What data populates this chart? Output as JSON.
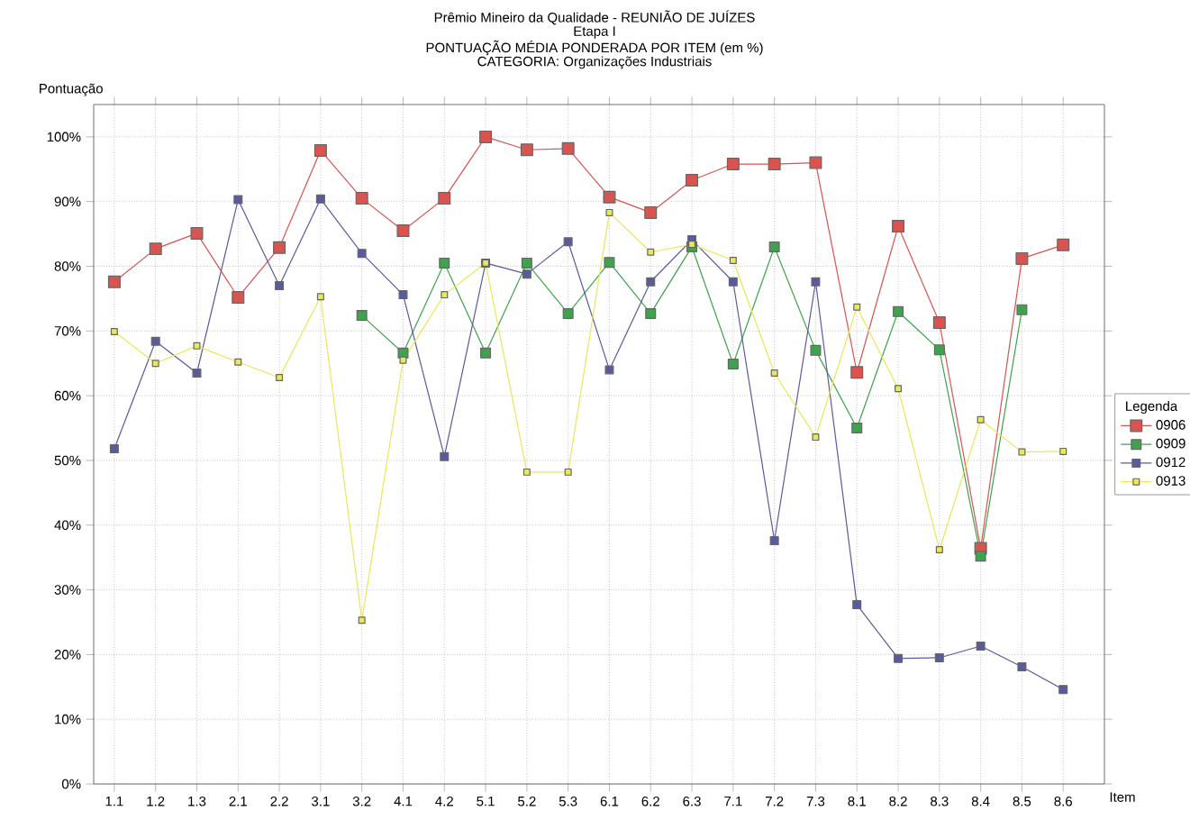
{
  "chart_data": {
    "type": "line",
    "title": "Prêmio Mineiro da Qualidade - REUNIÃO DE JUÍZES",
    "subtitle": "Etapa I",
    "annotations": [
      "PONTUAÇÃO MÉDIA PONDERADA POR ITEM (em %)",
      "CATEGORIA: Organizações Industriais"
    ],
    "xlabel": "Item",
    "ylabel": "Pontuação",
    "legend_title": "Legenda",
    "categories": [
      "1.1",
      "1.2",
      "1.3",
      "2.1",
      "2.2",
      "3.1",
      "3.2",
      "4.1",
      "4.2",
      "5.1",
      "5.2",
      "5.3",
      "6.1",
      "6.2",
      "6.3",
      "7.1",
      "7.2",
      "7.3",
      "8.1",
      "8.2",
      "8.3",
      "8.4",
      "8.5",
      "8.6"
    ],
    "series": [
      {
        "name": "0906",
        "color": "#d9534f",
        "values": [
          77.6,
          82.7,
          85.1,
          75.2,
          82.9,
          97.9,
          90.5,
          85.5,
          90.5,
          100,
          98,
          98.2,
          90.7,
          88.3,
          93.3,
          95.8,
          95.8,
          96,
          63.6,
          86.2,
          71.3,
          36.4,
          81.2,
          83.3
        ]
      },
      {
        "name": "0909",
        "color": "#3fa34d",
        "values": [
          null,
          null,
          null,
          null,
          null,
          null,
          72.4,
          66.6,
          80.5,
          66.6,
          80.5,
          72.7,
          80.6,
          72.7,
          83,
          64.9,
          83,
          67,
          55,
          73,
          67.1,
          35.2,
          73.3,
          null
        ]
      },
      {
        "name": "0912",
        "color": "#5a5a9e",
        "values": [
          51.8,
          68.4,
          63.5,
          90.3,
          77,
          90.4,
          82,
          75.6,
          50.6,
          80.5,
          78.8,
          83.8,
          64,
          77.6,
          84.1,
          77.6,
          37.6,
          77.6,
          27.7,
          19.4,
          19.5,
          21.3,
          18.1,
          14.6
        ]
      },
      {
        "name": "0913",
        "color": "#e8e85a",
        "values": [
          69.9,
          65,
          67.7,
          65.2,
          62.8,
          75.3,
          25.3,
          65.5,
          75.6,
          80.5,
          48.2,
          48.2,
          88.3,
          82.2,
          83.4,
          80.9,
          63.5,
          53.6,
          73.7,
          61.1,
          36.2,
          56.3,
          51.3,
          51.4
        ]
      }
    ],
    "ylim": [
      0,
      105
    ],
    "yticks": [
      {
        "value": 0,
        "label": "0%"
      },
      {
        "value": 10,
        "label": "10%"
      },
      {
        "value": 20,
        "label": "20%"
      },
      {
        "value": 30,
        "label": "30%"
      },
      {
        "value": 40,
        "label": "40%"
      },
      {
        "value": 50,
        "label": "50%"
      },
      {
        "value": 60,
        "label": "60%"
      },
      {
        "value": 70,
        "label": "70%"
      },
      {
        "value": 80,
        "label": "80%"
      },
      {
        "value": 90,
        "label": "90%"
      },
      {
        "value": 100,
        "label": "100%"
      }
    ],
    "grid": true,
    "legend": "right",
    "marker": "square",
    "line_style": "solid"
  }
}
